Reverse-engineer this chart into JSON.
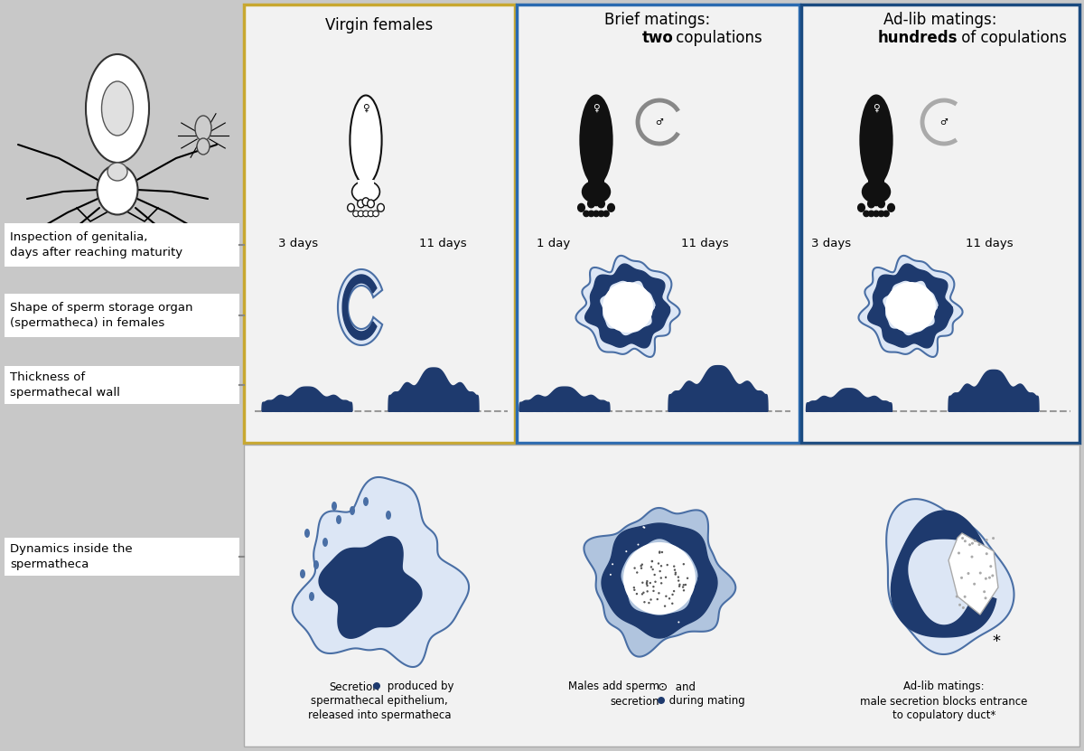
{
  "bg_color": "#c8c8c8",
  "panel_bg": "#f2f2f2",
  "white": "#ffffff",
  "dark_blue": "#1e3a6e",
  "mid_blue": "#4a6fa5",
  "light_blue": "#b0c4de",
  "very_light_blue": "#dce6f5",
  "panel_border_gold": "#c8a830",
  "panel_border_blue": "#2a6ab0",
  "panel_border_dark_blue": "#1a4a80",
  "title_fontsize": 12,
  "label_fontsize": 9.5,
  "small_fontsize": 8.5,
  "panel1_title": "Virgin females",
  "panel2_line1": "Brief matings:",
  "panel2_line2_normal": " copulations",
  "panel2_line2_bold": "two",
  "panel3_line1": "Ad-lib matings:",
  "panel3_line2_normal": " of copulations",
  "panel3_line2_bold": "hundreds",
  "label1": "Inspection of genitalia,\ndays after reaching maturity",
  "label2": "Shape of sperm storage organ\n(spermatheca) in females",
  "label3": "Thickness of\nspermathecal wall",
  "label4": "Dynamics inside the\nspermatheca",
  "days_v1": "3 days",
  "days_v2": "11 days",
  "days_b1": "1 day",
  "days_b2": "11 days",
  "days_a1": "3 days",
  "days_a2": "11 days",
  "caption1_line1": "Secretion",
  "caption1_line2": " produced by",
  "caption1_rest": "spermathecal epithelium,\nreleased into spermatheca",
  "caption2_line1": "Males add sperm",
  "caption2_line2": " and",
  "caption2_line3": "secretion",
  "caption2_line4": " during mating",
  "caption3_line1": "Ad-lib matings:",
  "caption3_rest": "male secretion blocks entrance\nto copulatory duct*"
}
